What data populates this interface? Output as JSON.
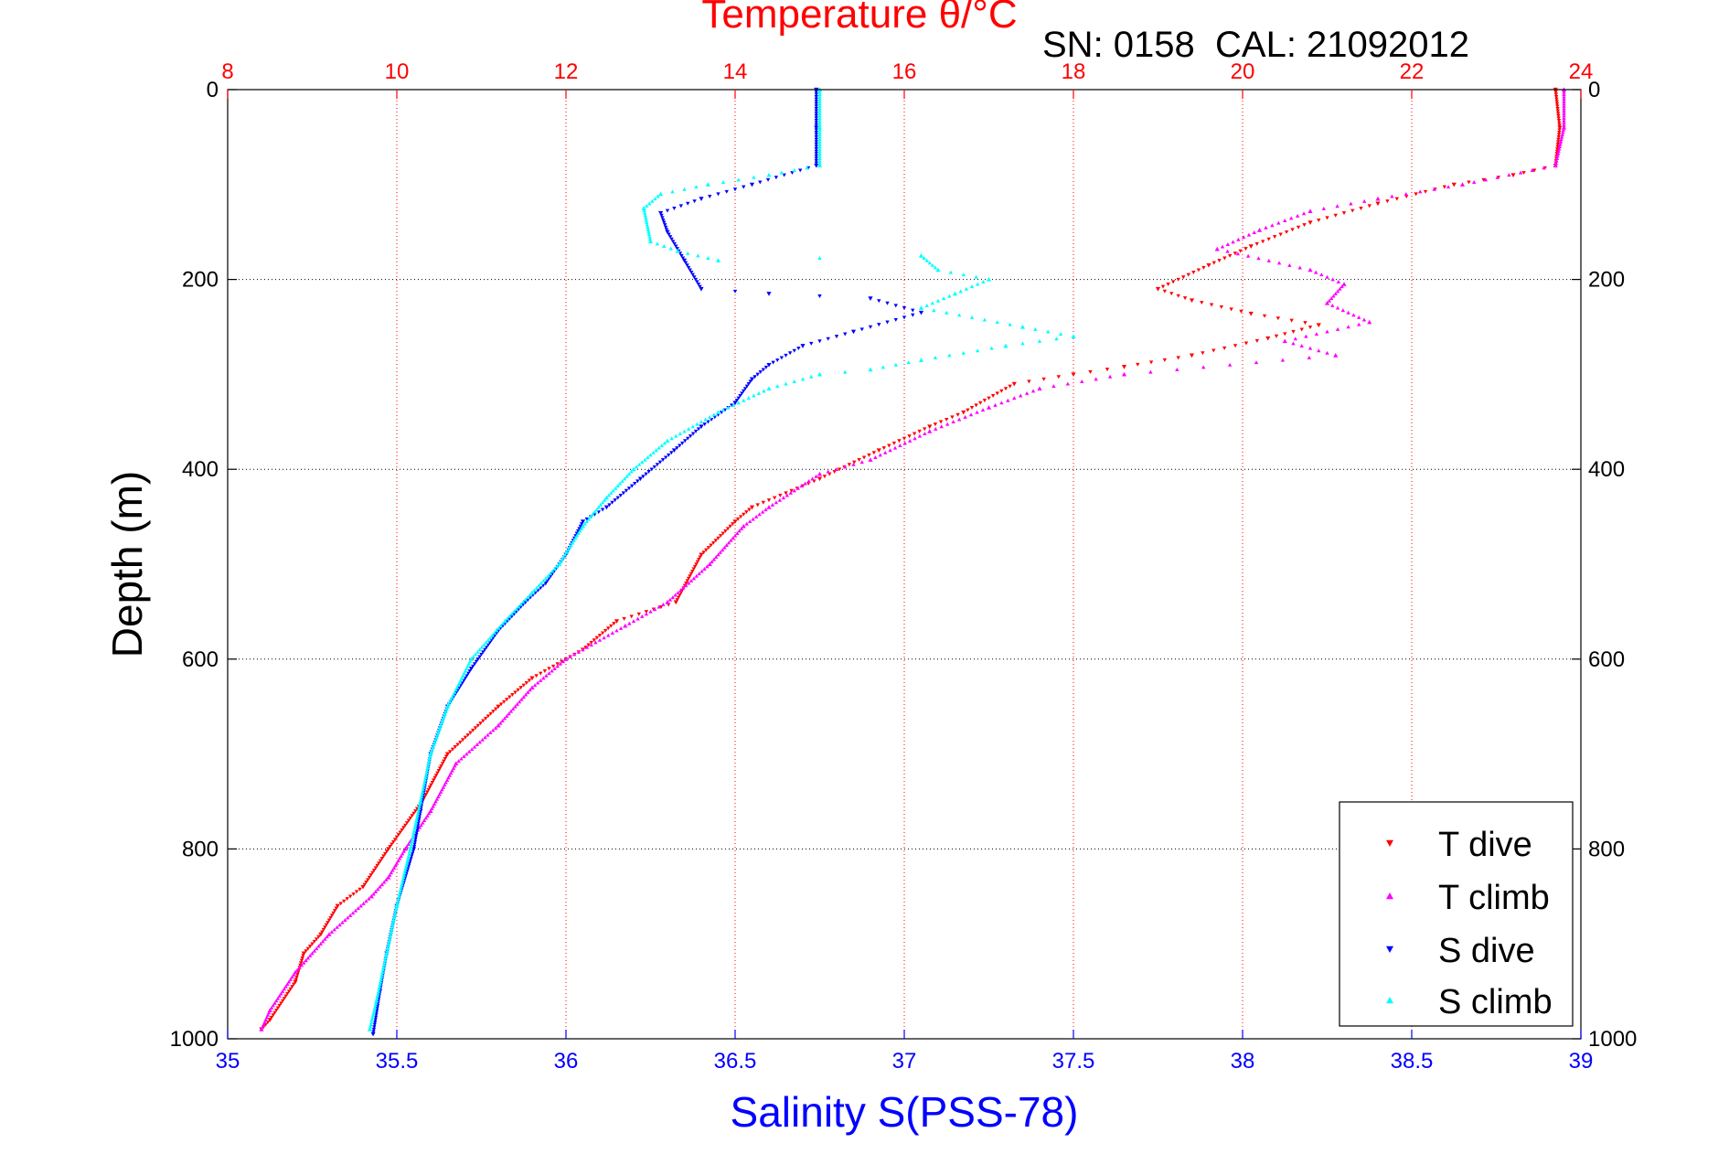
{
  "chart_data": {
    "type": "scatter",
    "title": "Temperature θ/°C",
    "subtitle": "SN: 0158  CAL: 21092012",
    "ylabel": "Depth (m)",
    "xlabel": "Salinity S(PSS-78)",
    "x_top_label": "Temperature θ/°C",
    "y_range": [
      0,
      1000
    ],
    "y_reversed": true,
    "x_bottom_range": [
      35,
      39
    ],
    "x_top_range": [
      8,
      24
    ],
    "y_ticks": [
      "0",
      "200",
      "400",
      "600",
      "800",
      "1000"
    ],
    "x_bottom_ticks": [
      "35",
      "35.5",
      "36",
      "36.5",
      "37",
      "37.5",
      "38",
      "38.5",
      "39"
    ],
    "x_top_ticks": [
      "8",
      "10",
      "12",
      "14",
      "16",
      "18",
      "20",
      "22",
      "24"
    ],
    "grid": true,
    "legend_position": "bottom-right",
    "colors": {
      "temperature_axis": "#ff0000",
      "salinity_axis": "#0000ff",
      "grid": "#000000"
    },
    "series": [
      {
        "name": "T dive",
        "axis": "top",
        "color": "#ff0000",
        "marker": "triangle-down",
        "points": [
          [
            23.7,
            0
          ],
          [
            23.75,
            40
          ],
          [
            23.7,
            80
          ],
          [
            23.2,
            90
          ],
          [
            22.5,
            100
          ],
          [
            21.6,
            120
          ],
          [
            20.8,
            140
          ],
          [
            20.1,
            165
          ],
          [
            19.6,
            185
          ],
          [
            19.0,
            210
          ],
          [
            19.4,
            222
          ],
          [
            20.1,
            236
          ],
          [
            20.9,
            248
          ],
          [
            20.3,
            262
          ],
          [
            19.4,
            280
          ],
          [
            18.6,
            292
          ],
          [
            18.0,
            300
          ],
          [
            17.3,
            310
          ],
          [
            16.7,
            340
          ],
          [
            16.3,
            355
          ],
          [
            15.7,
            380
          ],
          [
            15.0,
            410
          ],
          [
            14.2,
            440
          ],
          [
            14.0,
            455
          ],
          [
            13.6,
            490
          ],
          [
            13.3,
            540
          ],
          [
            12.6,
            560
          ],
          [
            12.2,
            590
          ],
          [
            11.6,
            620
          ],
          [
            11.2,
            650
          ],
          [
            10.6,
            700
          ],
          [
            10.3,
            750
          ],
          [
            9.9,
            800
          ],
          [
            9.6,
            840
          ],
          [
            9.3,
            860
          ],
          [
            9.1,
            890
          ],
          [
            8.9,
            910
          ],
          [
            8.8,
            940
          ],
          [
            8.5,
            980
          ],
          [
            8.4,
            990
          ]
        ]
      },
      {
        "name": "T climb",
        "axis": "top",
        "color": "#ff00ff",
        "marker": "triangle-up",
        "points": [
          [
            23.8,
            0
          ],
          [
            23.8,
            40
          ],
          [
            23.7,
            80
          ],
          [
            22.6,
            100
          ],
          [
            21.6,
            115
          ],
          [
            20.8,
            128
          ],
          [
            20.2,
            148
          ],
          [
            19.7,
            168
          ],
          [
            20.8,
            190
          ],
          [
            21.2,
            205
          ],
          [
            21.0,
            225
          ],
          [
            21.5,
            245
          ],
          [
            20.5,
            265
          ],
          [
            21.1,
            280
          ],
          [
            18.6,
            300
          ],
          [
            17.6,
            315
          ],
          [
            17.0,
            335
          ],
          [
            16.3,
            360
          ],
          [
            15.6,
            390
          ],
          [
            15.0,
            405
          ],
          [
            14.4,
            440
          ],
          [
            14.1,
            460
          ],
          [
            13.7,
            500
          ],
          [
            13.2,
            540
          ],
          [
            12.7,
            565
          ],
          [
            12.0,
            600
          ],
          [
            11.6,
            630
          ],
          [
            11.2,
            670
          ],
          [
            10.7,
            710
          ],
          [
            10.4,
            760
          ],
          [
            10.1,
            800
          ],
          [
            9.9,
            830
          ],
          [
            9.7,
            850
          ],
          [
            9.2,
            890
          ],
          [
            8.8,
            930
          ],
          [
            8.5,
            970
          ],
          [
            8.4,
            990
          ]
        ]
      },
      {
        "name": "S dive",
        "axis": "bottom",
        "color": "#0000ff",
        "marker": "triangle-down",
        "points": [
          [
            36.74,
            0
          ],
          [
            36.74,
            40
          ],
          [
            36.74,
            80
          ],
          [
            36.55,
            100
          ],
          [
            36.4,
            115
          ],
          [
            36.28,
            130
          ],
          [
            36.3,
            150
          ],
          [
            36.35,
            180
          ],
          [
            36.4,
            210
          ],
          [
            36.6,
            215
          ],
          [
            36.9,
            220
          ],
          [
            37.05,
            235
          ],
          [
            36.85,
            255
          ],
          [
            36.7,
            270
          ],
          [
            36.6,
            290
          ],
          [
            36.55,
            305
          ],
          [
            36.5,
            330
          ],
          [
            36.4,
            355
          ],
          [
            36.32,
            380
          ],
          [
            36.22,
            410
          ],
          [
            36.12,
            440
          ],
          [
            36.05,
            455
          ],
          [
            36.0,
            490
          ],
          [
            35.94,
            520
          ],
          [
            35.88,
            540
          ],
          [
            35.8,
            570
          ],
          [
            35.72,
            610
          ],
          [
            35.65,
            650
          ],
          [
            35.6,
            700
          ],
          [
            35.57,
            760
          ],
          [
            35.55,
            800
          ],
          [
            35.5,
            860
          ],
          [
            35.47,
            910
          ],
          [
            35.45,
            950
          ],
          [
            35.43,
            995
          ]
        ]
      },
      {
        "name": "S climb",
        "axis": "bottom",
        "color": "#00ffff",
        "marker": "triangle-up",
        "points": [
          [
            36.75,
            0
          ],
          [
            36.75,
            40
          ],
          [
            36.75,
            80
          ],
          [
            36.6,
            90
          ],
          [
            36.42,
            100
          ],
          [
            36.28,
            110
          ],
          [
            36.23,
            125
          ],
          [
            36.25,
            160
          ],
          [
            36.33,
            170
          ],
          [
            36.45,
            180
          ],
          [
            37.05,
            175
          ],
          [
            37.1,
            190
          ],
          [
            37.25,
            200
          ],
          [
            37.15,
            215
          ],
          [
            37.05,
            230
          ],
          [
            37.35,
            250
          ],
          [
            37.5,
            260
          ],
          [
            37.3,
            270
          ],
          [
            37.05,
            285
          ],
          [
            36.9,
            295
          ],
          [
            36.75,
            300
          ],
          [
            36.6,
            315
          ],
          [
            36.45,
            340
          ],
          [
            36.3,
            370
          ],
          [
            36.2,
            400
          ],
          [
            36.12,
            430
          ],
          [
            36.05,
            460
          ],
          [
            35.98,
            500
          ],
          [
            35.9,
            530
          ],
          [
            35.82,
            560
          ],
          [
            35.72,
            600
          ],
          [
            35.65,
            650
          ],
          [
            35.6,
            700
          ],
          [
            35.57,
            750
          ],
          [
            35.54,
            800
          ],
          [
            35.5,
            860
          ],
          [
            35.47,
            910
          ],
          [
            35.44,
            960
          ],
          [
            35.42,
            990
          ]
        ]
      }
    ]
  }
}
